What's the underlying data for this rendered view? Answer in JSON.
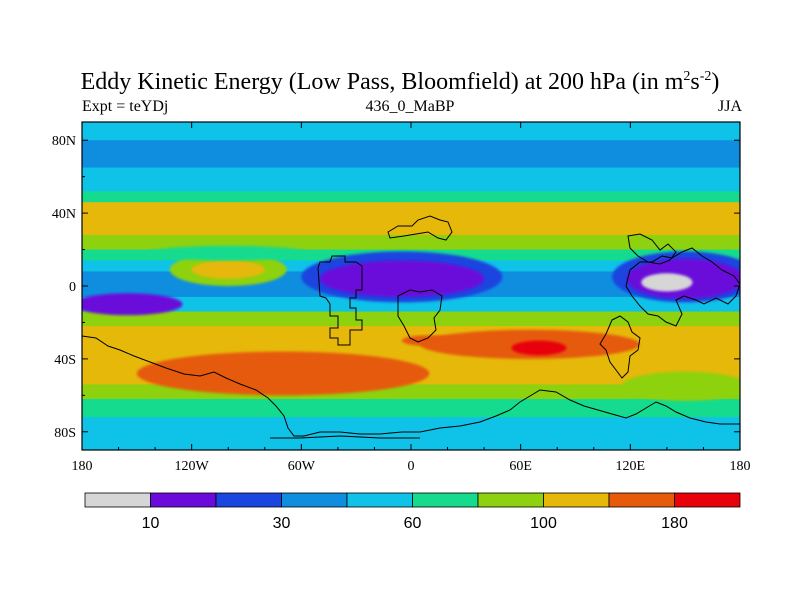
{
  "chart_data": {
    "type": "heatmap",
    "title": "Eddy Kinetic Energy (Low Pass, Bloomfield) at 200 hPa (in m",
    "title_units_sup1": "2",
    "title_units_mid": "s",
    "title_units_sup2": "-2",
    "title_units_end": ")",
    "subtitle_left": "Expt = teYDj",
    "subtitle_center": "436_0_MaBP",
    "subtitle_right": "JJA",
    "x_ticks": [
      "180",
      "120W",
      "60W",
      "0",
      "60E",
      "120E",
      "180"
    ],
    "x_tick_values": [
      -180,
      -120,
      -60,
      0,
      60,
      120,
      180
    ],
    "y_ticks": [
      "80N",
      "40N",
      "0",
      "40S",
      "80S"
    ],
    "y_tick_values": [
      80,
      40,
      0,
      -40,
      -80
    ],
    "xlim": [
      -180,
      180
    ],
    "ylim": [
      -90,
      90
    ],
    "colorbar": {
      "colors": [
        "#d6d6d6",
        "#6a0adb",
        "#1a45e0",
        "#0f8ee0",
        "#0fc2e8",
        "#15db8f",
        "#8ed10f",
        "#e6b80a",
        "#e65a0a",
        "#e8000a"
      ],
      "labels": [
        "10",
        "30",
        "60",
        "100",
        "180"
      ]
    },
    "bands": [
      {
        "lat_top": 90,
        "lat_bottom": 80,
        "level": 4
      },
      {
        "lat_top": 80,
        "lat_bottom": 65,
        "level": 3
      },
      {
        "lat_top": 65,
        "lat_bottom": 52,
        "level": 4
      },
      {
        "lat_top": 52,
        "lat_bottom": 46,
        "level": 5
      },
      {
        "lat_top": 46,
        "lat_bottom": 28,
        "level": 7
      },
      {
        "lat_top": 28,
        "lat_bottom": 20,
        "level": 6
      },
      {
        "lat_top": 20,
        "lat_bottom": 14,
        "level": 5
      },
      {
        "lat_top": 14,
        "lat_bottom": 8,
        "level": 4
      },
      {
        "lat_top": 8,
        "lat_bottom": -6,
        "level": 3
      },
      {
        "lat_top": -6,
        "lat_bottom": -14,
        "level": 4
      },
      {
        "lat_top": -14,
        "lat_bottom": -22,
        "level": 6
      },
      {
        "lat_top": -22,
        "lat_bottom": -30,
        "level": 7
      },
      {
        "lat_top": -30,
        "lat_bottom": -54,
        "level": 7
      },
      {
        "lat_top": -54,
        "lat_bottom": -62,
        "level": 6
      },
      {
        "lat_top": -62,
        "lat_bottom": -72,
        "level": 5
      },
      {
        "lat_top": -72,
        "lat_bottom": -90,
        "level": 4
      }
    ],
    "blobs": [
      {
        "lon": -100,
        "lat": 9,
        "rlon": 32,
        "rlat": 9,
        "level": 6
      },
      {
        "lon": -100,
        "lat": 9,
        "rlon": 20,
        "rlat": 5,
        "level": 7
      },
      {
        "lon": -100,
        "lat": 18,
        "rlon": 45,
        "rlat": 4,
        "level": 5
      },
      {
        "lon": -5,
        "lat": 5,
        "rlon": 55,
        "rlat": 14,
        "level": 2
      },
      {
        "lon": -5,
        "lat": 4,
        "rlon": 45,
        "rlat": 10,
        "level": 1
      },
      {
        "lon": 150,
        "lat": 5,
        "rlon": 40,
        "rlat": 14,
        "level": 2
      },
      {
        "lon": 150,
        "lat": 4,
        "rlon": 32,
        "rlat": 11,
        "level": 1
      },
      {
        "lon": 140,
        "lat": 2,
        "rlon": 14,
        "rlat": 5,
        "level": 0
      },
      {
        "lon": -155,
        "lat": -10,
        "rlon": 30,
        "rlat": 6,
        "level": 1
      },
      {
        "lon": -70,
        "lat": -48,
        "rlon": 80,
        "rlat": 12,
        "level": 8
      },
      {
        "lon": 65,
        "lat": -32,
        "rlon": 60,
        "rlat": 8,
        "level": 8
      },
      {
        "lon": 70,
        "lat": -34,
        "rlon": 15,
        "rlat": 4,
        "level": 9
      },
      {
        "lon": 10,
        "lat": -30,
        "rlon": 15,
        "rlat": 3,
        "level": 8
      },
      {
        "lon": 150,
        "lat": -55,
        "rlon": 35,
        "rlat": 8,
        "level": 6
      }
    ]
  }
}
